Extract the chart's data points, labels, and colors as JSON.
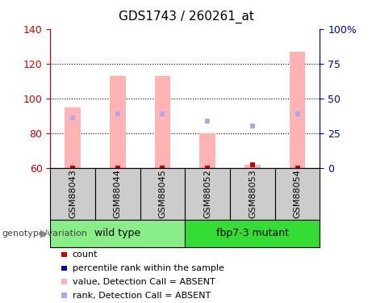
{
  "title": "GDS1743 / 260261_at",
  "samples": [
    "GSM88043",
    "GSM88044",
    "GSM88045",
    "GSM88052",
    "GSM88053",
    "GSM88054"
  ],
  "groups": [
    {
      "label": "wild type",
      "color": "#88ee88",
      "n": 3
    },
    {
      "label": "fbp7-3 mutant",
      "color": "#33dd33",
      "n": 3
    }
  ],
  "ylim_left": [
    60,
    140
  ],
  "ylim_right": [
    0,
    100
  ],
  "yticks_left": [
    60,
    80,
    100,
    120,
    140
  ],
  "yticks_right": [
    0,
    25,
    50,
    75,
    100
  ],
  "ytick_labels_right": [
    "0",
    "25",
    "50",
    "75",
    "100%"
  ],
  "bar_bottom": 60,
  "bar_color": "#ffb3b3",
  "bar_top_values": [
    95,
    113,
    113,
    80,
    62,
    127
  ],
  "rank_marker_values": [
    89,
    91,
    91,
    87,
    84,
    91
  ],
  "count_marker_values": [
    60,
    60,
    60,
    60,
    62,
    60
  ],
  "count_color": "#cc0000",
  "absent_rank_color": "#aaaaee",
  "bar_width": 0.35,
  "legend_items": [
    {
      "color": "#cc0000",
      "label": "count"
    },
    {
      "color": "#0000cc",
      "label": "percentile rank within the sample"
    },
    {
      "color": "#ffb3b3",
      "label": "value, Detection Call = ABSENT"
    },
    {
      "color": "#aaaaee",
      "label": "rank, Detection Call = ABSENT"
    }
  ],
  "ylabel_right_color": "#0000bb",
  "ylabel_left_color": "#cc0000",
  "grid_color": "#000000",
  "label_area_color": "#cccccc",
  "genotype_label": "genotype/variation"
}
